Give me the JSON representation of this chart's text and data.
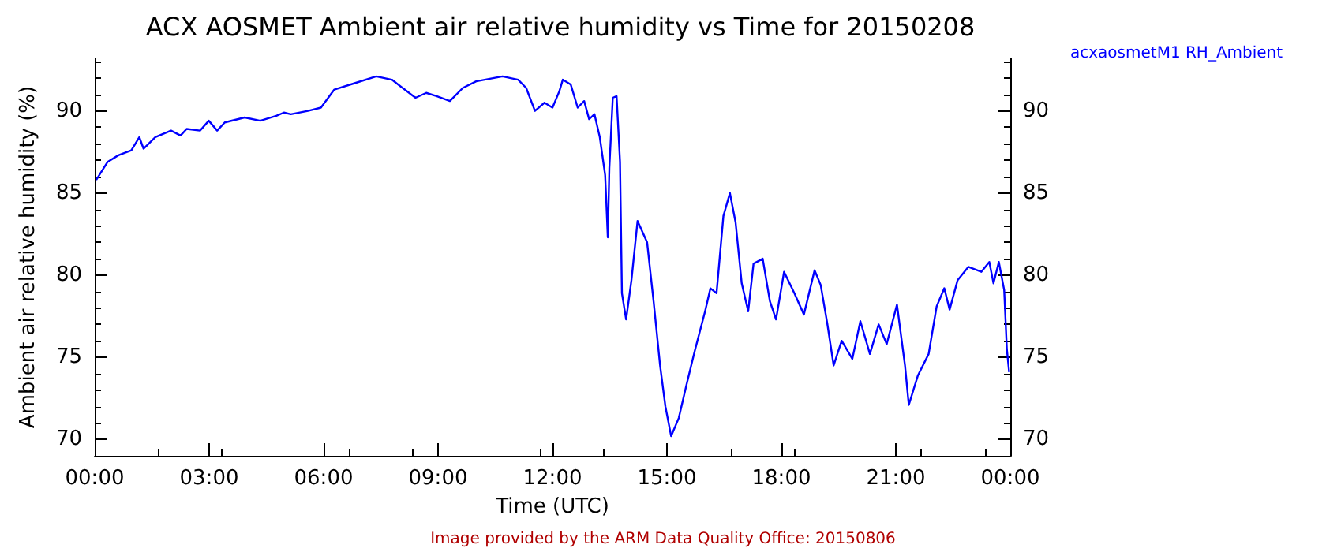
{
  "chart_data": {
    "type": "line",
    "title": "ACX AOSMET Ambient air relative humidity vs Time for 20150208",
    "xlabel": "Time (UTC)",
    "ylabel": "Ambient air relative humidity (%)",
    "annotations": [
      "Image provided by the ARM Data Quality Office: 20150806"
    ],
    "xlim": [
      0,
      24
    ],
    "xticks": [
      {
        "value": 0,
        "label": "00:00"
      },
      {
        "value": 3,
        "label": "03:00"
      },
      {
        "value": 6,
        "label": "06:00"
      },
      {
        "value": 9,
        "label": "09:00"
      },
      {
        "value": 12,
        "label": "12:00"
      },
      {
        "value": 15,
        "label": "15:00"
      },
      {
        "value": 18,
        "label": "18:00"
      },
      {
        "value": 21,
        "label": "21:00"
      },
      {
        "value": 24,
        "label": "00:00"
      }
    ],
    "ylim": [
      69,
      93.2
    ],
    "yticks": [
      70,
      75,
      80,
      85,
      90
    ],
    "y2lim": [
      69,
      93.2
    ],
    "y2ticks": [
      70,
      75,
      80,
      85,
      90
    ],
    "grid": false,
    "legend": "top right",
    "marker": "none",
    "line_style": "solid",
    "series": [
      {
        "name": "acxaosmetM1 RH_Ambient",
        "color": "#0000ff",
        "x": [
          0.04,
          0.34,
          0.62,
          0.96,
          1.17,
          1.28,
          1.59,
          2.0,
          2.25,
          2.41,
          2.76,
          2.99,
          3.21,
          3.41,
          3.93,
          4.34,
          4.76,
          4.96,
          5.14,
          5.59,
          5.93,
          6.28,
          6.83,
          7.38,
          7.79,
          8.07,
          8.41,
          8.69,
          8.96,
          9.31,
          9.65,
          10.0,
          10.69,
          11.1,
          11.31,
          11.54,
          11.79,
          12.0,
          12.18,
          12.27,
          12.48,
          12.66,
          12.83,
          12.96,
          13.1,
          13.24,
          13.38,
          13.45,
          13.49,
          13.58,
          13.68,
          13.77,
          13.82,
          13.93,
          14.07,
          14.23,
          14.48,
          14.65,
          14.82,
          14.96,
          15.11,
          15.31,
          15.51,
          15.72,
          16.0,
          16.14,
          16.3,
          16.48,
          16.65,
          16.8,
          16.96,
          17.13,
          17.27,
          17.51,
          17.7,
          17.86,
          18.07,
          18.34,
          18.59,
          18.87,
          19.03,
          19.2,
          19.37,
          19.58,
          19.86,
          20.07,
          20.32,
          20.55,
          20.76,
          21.03,
          21.24,
          21.34,
          21.58,
          21.86,
          22.07,
          22.27,
          22.41,
          22.62,
          22.9,
          23.24,
          23.45,
          23.56,
          23.7,
          23.84,
          23.91,
          23.97
        ],
        "values": [
          85.8,
          86.9,
          87.3,
          87.6,
          88.4,
          87.7,
          88.4,
          88.8,
          88.5,
          88.9,
          88.8,
          89.4,
          88.8,
          89.3,
          89.6,
          89.4,
          89.7,
          89.9,
          89.8,
          90.0,
          90.2,
          91.3,
          91.7,
          92.1,
          91.9,
          91.4,
          90.8,
          91.1,
          90.9,
          90.6,
          91.4,
          91.8,
          92.1,
          91.9,
          91.4,
          90.0,
          90.5,
          90.2,
          91.2,
          91.9,
          91.6,
          90.2,
          90.6,
          89.5,
          89.8,
          88.4,
          86.1,
          82.3,
          86.5,
          90.8,
          90.9,
          86.9,
          78.9,
          77.3,
          79.7,
          83.3,
          82.0,
          78.4,
          74.5,
          72.0,
          70.2,
          71.3,
          73.3,
          75.3,
          77.8,
          79.2,
          78.9,
          83.6,
          85.0,
          83.2,
          79.5,
          77.8,
          80.7,
          81.0,
          78.4,
          77.3,
          80.2,
          78.9,
          77.6,
          80.3,
          79.4,
          77.1,
          74.5,
          76.0,
          74.9,
          77.2,
          75.2,
          77.0,
          75.8,
          78.2,
          74.5,
          72.1,
          73.9,
          75.2,
          78.1,
          79.2,
          77.9,
          79.7,
          80.5,
          80.2,
          80.8,
          79.5,
          80.8,
          79.1,
          75.5,
          74.1
        ]
      }
    ]
  }
}
